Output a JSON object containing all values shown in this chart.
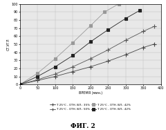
{
  "fig_label": "ФИГ. 2",
  "xlabel": "ВРЕМЯ (мин.)",
  "ylabel": "СТ.УГЛ",
  "xlim": [
    0,
    400
  ],
  "ylim": [
    0,
    100
  ],
  "xticks": [
    0,
    50,
    100,
    150,
    200,
    250,
    300,
    350,
    400
  ],
  "yticks": [
    0,
    10,
    20,
    30,
    40,
    50,
    60,
    70,
    80,
    90,
    100
  ],
  "background_color": "#e8e8e8",
  "series": [
    {
      "label": "T: 25°C - ОТН. ВЛ.: 35%",
      "x": [
        0,
        50,
        100,
        150,
        200,
        250,
        300,
        350,
        380
      ],
      "y": [
        0,
        5,
        10,
        16,
        22,
        29,
        37,
        46,
        50
      ],
      "color": "#444444",
      "marker": "+",
      "linestyle": "-"
    },
    {
      "label": "T: 25°C - ОТН. ВЛ.: 50%",
      "x": [
        0,
        50,
        100,
        150,
        200,
        250,
        300,
        350,
        380
      ],
      "y": [
        0,
        6,
        13,
        22,
        32,
        43,
        55,
        66,
        72
      ],
      "color": "#555555",
      "marker": "+",
      "linestyle": "-"
    },
    {
      "label": "T: 25°C - ОТН. ВЛ.: 42%",
      "x": [
        0,
        50,
        100,
        150,
        200,
        240,
        280
      ],
      "y": [
        0,
        14,
        32,
        52,
        73,
        90,
        100
      ],
      "color": "#888888",
      "marker": "s",
      "linestyle": "-"
    },
    {
      "label": "T: 25°C - ОТН. ВЛ.: 42%",
      "x": [
        0,
        50,
        100,
        150,
        200,
        250,
        300,
        340
      ],
      "y": [
        0,
        10,
        22,
        36,
        53,
        68,
        82,
        92
      ],
      "color": "#222222",
      "marker": "s",
      "linestyle": "-"
    }
  ],
  "legend_labels": [
    "T: 25°C - ОТН. ВЛ.: 35%",
    "T: 25°C - ОТН. ВЛ.: 50%",
    "T: 25°C - ОТН. ВЛ.: 42%",
    "T: 25°C - ОТН. ВЛ.: 42%"
  ]
}
